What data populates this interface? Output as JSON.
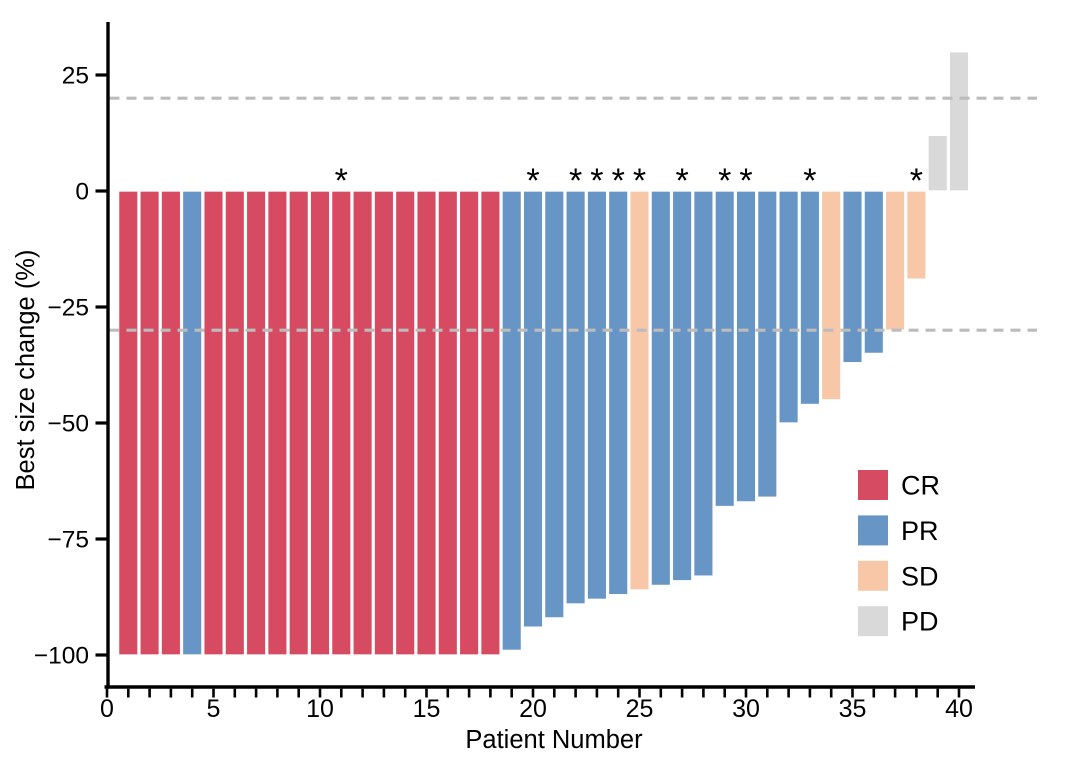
{
  "figure": {
    "background": "#ffffff",
    "annotation_symbol": "*",
    "annotation_meaning_visible": false
  },
  "legend": {
    "position": "inside-right",
    "entries": [
      {
        "label": "CR",
        "color": "#d64b61"
      },
      {
        "label": "PR",
        "color": "#6795c6"
      },
      {
        "label": "SD",
        "color": "#f8c7a7"
      },
      {
        "label": "PD",
        "color": "#d9d9d9"
      }
    ]
  },
  "colors": {
    "CR": "#d64b61",
    "PR": "#6795c6",
    "SD": "#f8c7a7",
    "PD": "#d9d9d9",
    "reference_line": "#bcbcbc",
    "axis": "#000000",
    "bar_outline": "#ffffff"
  },
  "chart_data": {
    "type": "bar",
    "subtype": "waterfall",
    "title": "",
    "xlabel": "Patient Number",
    "ylabel": "Best size change (%)",
    "xlim": [
      0,
      41
    ],
    "ylim": [
      -110,
      36
    ],
    "grid": false,
    "y_ticks": [
      25,
      0,
      -25,
      -50,
      -75,
      -100
    ],
    "x_tick_labels": [
      0,
      5,
      10,
      15,
      20,
      25,
      30,
      35,
      40
    ],
    "x_minor_tick_every": 1,
    "reference_lines": [
      20,
      -30
    ],
    "reference_line_style": "dashed",
    "annotation_symbol": "*",
    "annotated_patients": [
      11,
      20,
      22,
      23,
      24,
      25,
      27,
      29,
      30,
      33,
      38
    ],
    "patients": [
      {
        "patient": 1,
        "value": -100,
        "response": "CR",
        "star": false
      },
      {
        "patient": 2,
        "value": -100,
        "response": "CR",
        "star": false
      },
      {
        "patient": 3,
        "value": -100,
        "response": "CR",
        "star": false
      },
      {
        "patient": 4,
        "value": -100,
        "response": "PR",
        "star": false
      },
      {
        "patient": 5,
        "value": -100,
        "response": "CR",
        "star": false
      },
      {
        "patient": 6,
        "value": -100,
        "response": "CR",
        "star": false
      },
      {
        "patient": 7,
        "value": -100,
        "response": "CR",
        "star": false
      },
      {
        "patient": 8,
        "value": -100,
        "response": "CR",
        "star": false
      },
      {
        "patient": 9,
        "value": -100,
        "response": "CR",
        "star": false
      },
      {
        "patient": 10,
        "value": -100,
        "response": "CR",
        "star": false
      },
      {
        "patient": 11,
        "value": -100,
        "response": "CR",
        "star": true
      },
      {
        "patient": 12,
        "value": -100,
        "response": "CR",
        "star": false
      },
      {
        "patient": 13,
        "value": -100,
        "response": "CR",
        "star": false
      },
      {
        "pat": 14,
        "patient": 14,
        "value": -100,
        "response": "CR",
        "star": false
      },
      {
        "patient": 15,
        "value": -100,
        "response": "CR",
        "star": false
      },
      {
        "patient": 16,
        "value": -100,
        "response": "CR",
        "star": false
      },
      {
        "patient": 17,
        "value": -100,
        "response": "CR",
        "star": false
      },
      {
        "patient": 18,
        "value": -100,
        "response": "CR",
        "star": false
      },
      {
        "patient": 19,
        "value": -99,
        "response": "PR",
        "star": false
      },
      {
        "patient": 20,
        "value": -94,
        "response": "PR",
        "star": true
      },
      {
        "patient": 21,
        "value": -92,
        "response": "PR",
        "star": false
      },
      {
        "patient": 22,
        "value": -89,
        "response": "PR",
        "star": true
      },
      {
        "patient": 23,
        "value": -88,
        "response": "PR",
        "star": true
      },
      {
        "patient": 24,
        "value": -87,
        "response": "PR",
        "star": true
      },
      {
        "patient": 25,
        "value": -86,
        "response": "SD",
        "star": true
      },
      {
        "patient": 26,
        "value": -85,
        "response": "PR",
        "star": false
      },
      {
        "patient": 27,
        "value": -84,
        "response": "PR",
        "star": true
      },
      {
        "patient": 28,
        "value": -83,
        "response": "PR",
        "star": false
      },
      {
        "patient": 29,
        "value": -68,
        "response": "PR",
        "star": true
      },
      {
        "patient": 30,
        "value": -67,
        "response": "PR",
        "star": true
      },
      {
        "patient": 31,
        "value": -66,
        "response": "PR",
        "star": false
      },
      {
        "patient": 32,
        "value": -50,
        "response": "PR",
        "star": false
      },
      {
        "patient": 33,
        "value": -46,
        "response": "PR",
        "star": true
      },
      {
        "patient": 34,
        "value": -45,
        "response": "SD",
        "star": false
      },
      {
        "patient": 35,
        "value": -37,
        "response": "PR",
        "star": false
      },
      {
        "patient": 36,
        "value": -35,
        "response": "PR",
        "star": false
      },
      {
        "patient": 37,
        "value": -30,
        "response": "SD",
        "star": false
      },
      {
        "patient": 38,
        "value": -19,
        "response": "SD",
        "star": true
      },
      {
        "patient": 39,
        "value": 12,
        "response": "PD",
        "star": false
      },
      {
        "patient": 40,
        "value": 30,
        "response": "PD",
        "star": false
      }
    ]
  }
}
